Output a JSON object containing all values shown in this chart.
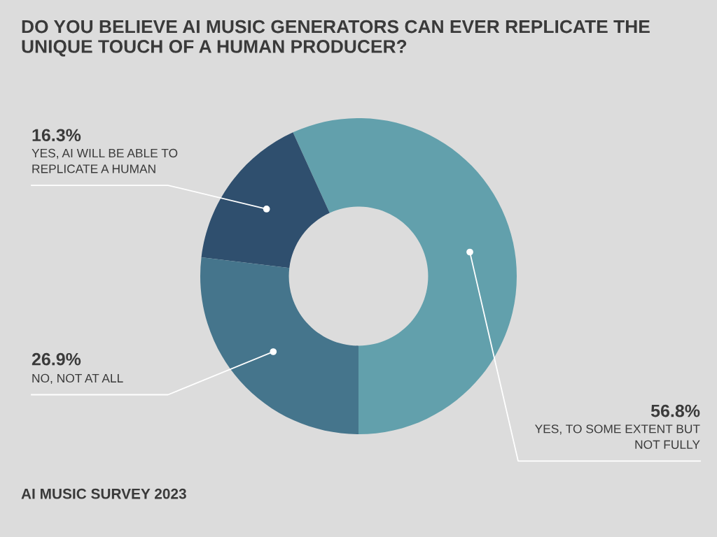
{
  "chart_data": {
    "type": "donut",
    "title": "DO YOU BELIEVE AI MUSIC GENERATORS CAN EVER REPLICATE THE UNIQUE TOUCH OF A HUMAN PRODUCER?",
    "categories": [
      "YES, TO SOME EXTENT BUT NOT FULLY",
      "YES, AI WILL BE ABLE TO REPLICATE A HUMAN",
      "NO, NOT AT ALL"
    ],
    "values": [
      56.8,
      16.3,
      26.9
    ],
    "value_labels": [
      "56.8%",
      "16.3%",
      "26.9%"
    ],
    "colors": [
      "#62a0ac",
      "#2f4f6e",
      "#45758c"
    ],
    "annotations": [
      "AI MUSIC SURVEY 2023"
    ],
    "legend": false
  }
}
